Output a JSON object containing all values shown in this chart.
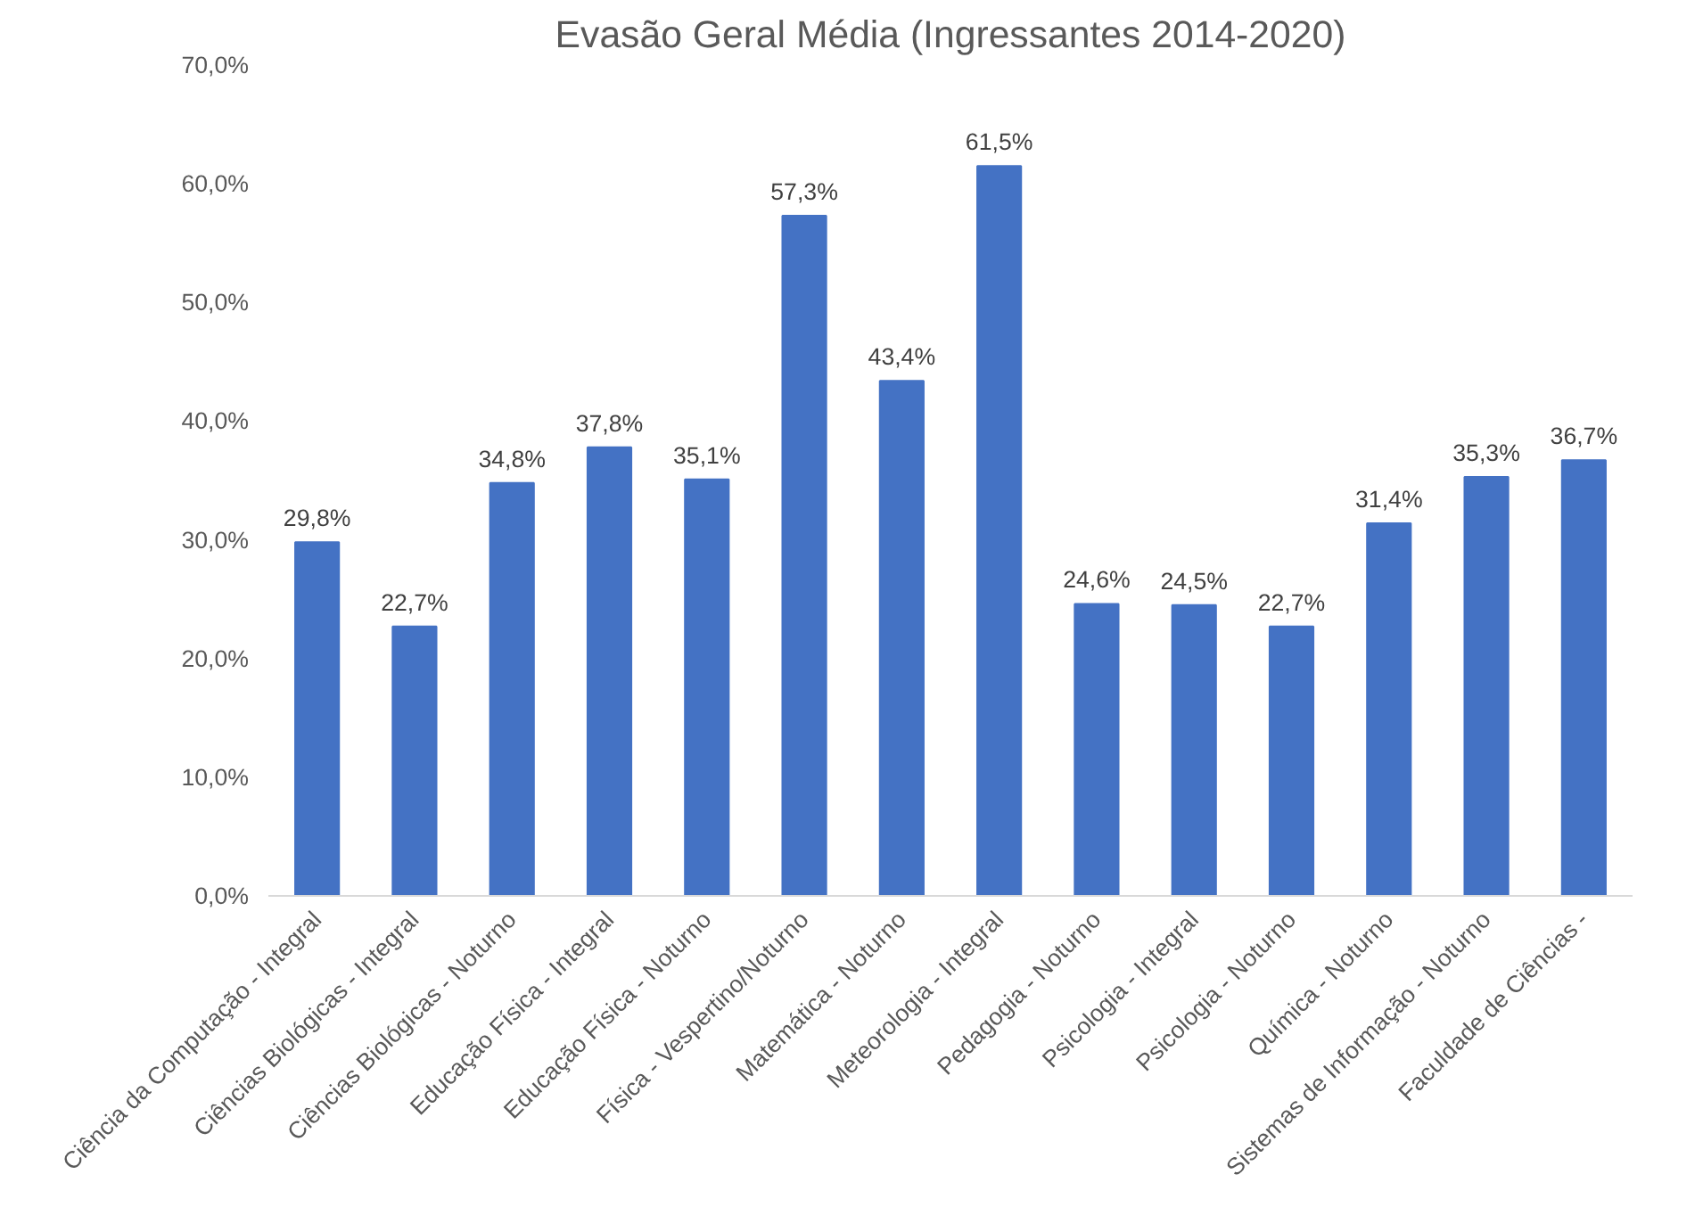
{
  "chart_data": {
    "type": "bar",
    "title": "Evasão Geral Média (Ingressantes 2014-2020)",
    "categories": [
      "Ciência da Computação - Integral",
      "Ciências Biológicas - Integral",
      "Ciências Biológicas - Noturno",
      "Educação Física - Integral",
      "Educação Física - Noturno",
      "Física - Vespertino/Noturno",
      "Matemática - Noturno",
      "Meteorologia - Integral",
      "Pedagogia - Noturno",
      "Psicologia - Integral",
      "Psicologia - Noturno",
      "Química - Noturno",
      "Sistemas de Informação - Noturno",
      "Faculdade de Ciências -"
    ],
    "values": [
      29.8,
      22.7,
      34.8,
      37.8,
      35.1,
      57.3,
      43.4,
      61.5,
      24.6,
      24.5,
      22.7,
      31.4,
      35.3,
      36.7
    ],
    "value_labels": [
      "29,8%",
      "22,7%",
      "34,8%",
      "37,8%",
      "35,1%",
      "57,3%",
      "43,4%",
      "61,5%",
      "24,6%",
      "24,5%",
      "22,7%",
      "31,4%",
      "35,3%",
      "36,7%"
    ],
    "color": "#4472c4",
    "ylim": [
      0,
      70
    ],
    "yticks": [
      {
        "value": 0,
        "label": "0,0%"
      },
      {
        "value": 10,
        "label": "10,0%"
      },
      {
        "value": 20,
        "label": "20,0%"
      },
      {
        "value": 30,
        "label": "30,0%"
      },
      {
        "value": 40,
        "label": "40,0%"
      },
      {
        "value": 50,
        "label": "50,0%"
      },
      {
        "value": 60,
        "label": "60,0%"
      },
      {
        "value": 70,
        "label": "70,0%"
      }
    ],
    "grid": false
  }
}
